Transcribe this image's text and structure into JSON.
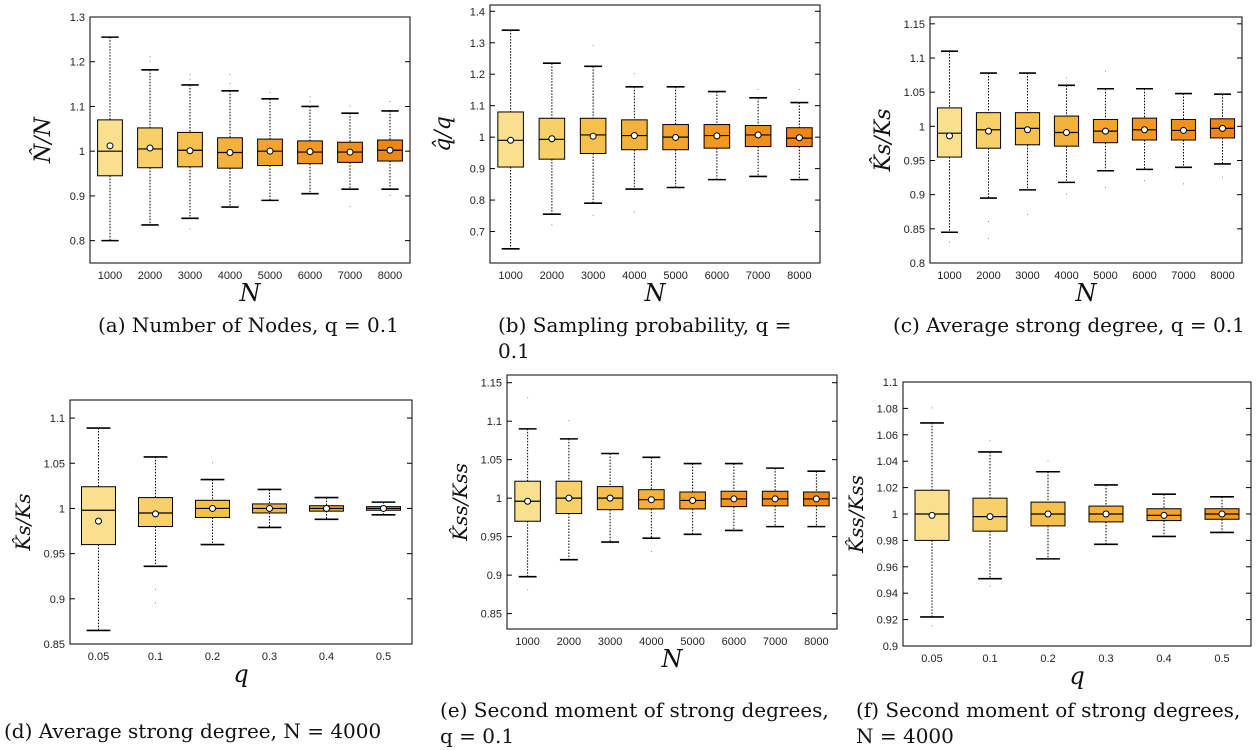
{
  "colors": [
    "#f9e08e",
    "#f8d06a",
    "#f6c04e",
    "#f4b13b",
    "#f3a42d",
    "#f29820",
    "#f08f19",
    "#ef8612"
  ],
  "chart_data": [
    {
      "type": "box",
      "ylabel": "N̂/N",
      "xlabel": "N",
      "categories": [
        "1000",
        "2000",
        "3000",
        "4000",
        "5000",
        "6000",
        "7000",
        "8000"
      ],
      "ylim": [
        0.75,
        1.3
      ],
      "yticks": [
        0.8,
        0.9,
        1,
        1.1,
        1.2,
        1.3
      ],
      "caption": "(a) Number of Nodes, q = 0.1",
      "boxes": [
        {
          "min": 0.8,
          "q1": 0.945,
          "median": 1.0,
          "q3": 1.07,
          "max": 1.255,
          "mean": 1.012,
          "outliers": [
            1.22,
            1.24
          ]
        },
        {
          "min": 0.835,
          "q1": 0.963,
          "median": 1.005,
          "q3": 1.052,
          "max": 1.182,
          "mean": 1.007,
          "outliers": [
            1.2,
            1.21
          ]
        },
        {
          "min": 0.85,
          "q1": 0.965,
          "median": 1.002,
          "q3": 1.042,
          "max": 1.148,
          "mean": 1.001,
          "outliers": [
            0.825,
            1.16,
            1.17
          ]
        },
        {
          "min": 0.875,
          "q1": 0.962,
          "median": 0.997,
          "q3": 1.03,
          "max": 1.135,
          "mean": 0.997,
          "outliers": [
            1.15,
            1.17
          ]
        },
        {
          "min": 0.89,
          "q1": 0.968,
          "median": 1.0,
          "q3": 1.027,
          "max": 1.117,
          "mean": 1.0,
          "outliers": [
            1.13
          ]
        },
        {
          "min": 0.905,
          "q1": 0.972,
          "median": 0.998,
          "q3": 1.023,
          "max": 1.1,
          "mean": 0.999,
          "outliers": [
            1.12,
            1.11
          ]
        },
        {
          "min": 0.915,
          "q1": 0.975,
          "median": 0.998,
          "q3": 1.02,
          "max": 1.085,
          "mean": 0.998,
          "outliers": [
            0.875,
            1.1
          ]
        },
        {
          "min": 0.915,
          "q1": 0.978,
          "median": 1.002,
          "q3": 1.025,
          "max": 1.09,
          "mean": 1.002,
          "outliers": [
            0.9,
            1.11
          ]
        }
      ]
    },
    {
      "type": "box",
      "ylabel": "q̂/q",
      "xlabel": "N",
      "categories": [
        "1000",
        "2000",
        "3000",
        "4000",
        "5000",
        "6000",
        "7000",
        "8000"
      ],
      "ylim": [
        0.6,
        1.42
      ],
      "yticks": [
        0.7,
        0.8,
        0.9,
        1,
        1.1,
        1.2,
        1.3,
        1.4
      ],
      "caption": "(b) Sampling probability, q = 0.1",
      "boxes": [
        {
          "min": 0.645,
          "q1": 0.905,
          "median": 0.99,
          "q3": 1.08,
          "max": 1.34,
          "mean": 0.99,
          "outliers": []
        },
        {
          "min": 0.755,
          "q1": 0.93,
          "median": 0.993,
          "q3": 1.06,
          "max": 1.235,
          "mean": 0.995,
          "outliers": [
            0.72
          ]
        },
        {
          "min": 0.79,
          "q1": 0.948,
          "median": 1.007,
          "q3": 1.06,
          "max": 1.225,
          "mean": 1.003,
          "outliers": [
            1.29,
            0.75
          ]
        },
        {
          "min": 0.835,
          "q1": 0.96,
          "median": 1.005,
          "q3": 1.055,
          "max": 1.16,
          "mean": 1.005,
          "outliers": [
            1.2,
            0.76
          ]
        },
        {
          "min": 0.84,
          "q1": 0.96,
          "median": 1.0,
          "q3": 1.04,
          "max": 1.16,
          "mean": 0.999,
          "outliers": []
        },
        {
          "min": 0.865,
          "q1": 0.965,
          "median": 1.005,
          "q3": 1.04,
          "max": 1.145,
          "mean": 1.004,
          "outliers": []
        },
        {
          "min": 0.875,
          "q1": 0.97,
          "median": 1.007,
          "q3": 1.037,
          "max": 1.125,
          "mean": 1.007,
          "outliers": [
            1.15
          ]
        },
        {
          "min": 0.865,
          "q1": 0.97,
          "median": 0.997,
          "q3": 1.03,
          "max": 1.11,
          "mean": 0.998,
          "outliers": [
            1.15
          ]
        }
      ]
    },
    {
      "type": "box",
      "ylabel": "K̂s/Ks",
      "xlabel": "N",
      "categories": [
        "1000",
        "2000",
        "3000",
        "4000",
        "5000",
        "6000",
        "7000",
        "8000"
      ],
      "ylim": [
        0.8,
        1.16
      ],
      "yticks": [
        0.8,
        0.85,
        0.9,
        0.95,
        1,
        1.05,
        1.1,
        1.15
      ],
      "caption": "(c) Average strong degree, q = 0.1",
      "boxes": [
        {
          "min": 0.845,
          "q1": 0.955,
          "median": 0.99,
          "q3": 1.027,
          "max": 1.11,
          "mean": 0.986,
          "outliers": [
            0.83
          ]
        },
        {
          "min": 0.895,
          "q1": 0.968,
          "median": 0.995,
          "q3": 1.02,
          "max": 1.078,
          "mean": 0.993,
          "outliers": [
            0.835,
            0.86
          ]
        },
        {
          "min": 0.907,
          "q1": 0.973,
          "median": 0.997,
          "q3": 1.02,
          "max": 1.078,
          "mean": 0.995,
          "outliers": [
            0.87
          ]
        },
        {
          "min": 0.918,
          "q1": 0.971,
          "median": 0.991,
          "q3": 1.015,
          "max": 1.06,
          "mean": 0.991,
          "outliers": [
            0.9,
            1.07
          ]
        },
        {
          "min": 0.935,
          "q1": 0.976,
          "median": 0.993,
          "q3": 1.01,
          "max": 1.055,
          "mean": 0.993,
          "outliers": [
            0.91,
            1.08
          ]
        },
        {
          "min": 0.937,
          "q1": 0.98,
          "median": 0.995,
          "q3": 1.012,
          "max": 1.055,
          "mean": 0.995,
          "outliers": [
            0.92
          ]
        },
        {
          "min": 0.94,
          "q1": 0.98,
          "median": 0.994,
          "q3": 1.01,
          "max": 1.048,
          "mean": 0.994,
          "outliers": [
            0.915
          ]
        },
        {
          "min": 0.945,
          "q1": 0.983,
          "median": 0.997,
          "q3": 1.011,
          "max": 1.047,
          "mean": 0.997,
          "outliers": [
            0.925
          ]
        }
      ]
    },
    {
      "type": "box",
      "ylabel": "K̂s/Ks",
      "xlabel": "q",
      "categories": [
        "0.05",
        "0.1",
        "0.2",
        "0.3",
        "0.4",
        "0.5"
      ],
      "ylim": [
        0.85,
        1.12
      ],
      "yticks": [
        0.85,
        0.9,
        0.95,
        1,
        1.05,
        1.1
      ],
      "caption": "(d) Average strong degree, N = 4000",
      "boxes": [
        {
          "min": 0.865,
          "q1": 0.96,
          "median": 0.998,
          "q3": 1.024,
          "max": 1.089,
          "mean": 0.986,
          "outliers": []
        },
        {
          "min": 0.936,
          "q1": 0.98,
          "median": 0.995,
          "q3": 1.012,
          "max": 1.057,
          "mean": 0.994,
          "outliers": [
            0.895,
            0.91
          ]
        },
        {
          "min": 0.96,
          "q1": 0.99,
          "median": 1.0,
          "q3": 1.009,
          "max": 1.032,
          "mean": 1.0,
          "outliers": [
            1.05
          ]
        },
        {
          "min": 0.979,
          "q1": 0.995,
          "median": 1.0,
          "q3": 1.005,
          "max": 1.021,
          "mean": 1.0,
          "outliers": []
        },
        {
          "min": 0.988,
          "q1": 0.997,
          "median": 1.0,
          "q3": 1.003,
          "max": 1.012,
          "mean": 1.0,
          "outliers": []
        },
        {
          "min": 0.993,
          "q1": 0.998,
          "median": 1.0,
          "q3": 1.002,
          "max": 1.007,
          "mean": 1.0,
          "outliers": []
        }
      ]
    },
    {
      "type": "box",
      "ylabel": "K̂ss/Kss",
      "xlabel": "N",
      "categories": [
        "1000",
        "2000",
        "3000",
        "4000",
        "5000",
        "6000",
        "7000",
        "8000"
      ],
      "ylim": [
        0.83,
        1.16
      ],
      "yticks": [
        0.85,
        0.9,
        0.95,
        1,
        1.05,
        1.1,
        1.15
      ],
      "caption": "(e) Second moment of strong degrees, q = 0.1",
      "boxes": [
        {
          "min": 0.898,
          "q1": 0.97,
          "median": 0.996,
          "q3": 1.022,
          "max": 1.09,
          "mean": 0.996,
          "outliers": [
            1.13,
            0.88
          ]
        },
        {
          "min": 0.92,
          "q1": 0.98,
          "median": 1.0,
          "q3": 1.022,
          "max": 1.077,
          "mean": 1.0,
          "outliers": [
            1.1
          ]
        },
        {
          "min": 0.943,
          "q1": 0.985,
          "median": 1.0,
          "q3": 1.015,
          "max": 1.058,
          "mean": 1.0,
          "outliers": []
        },
        {
          "min": 0.948,
          "q1": 0.986,
          "median": 0.998,
          "q3": 1.011,
          "max": 1.053,
          "mean": 0.998,
          "outliers": [
            0.93
          ]
        },
        {
          "min": 0.953,
          "q1": 0.986,
          "median": 0.997,
          "q3": 1.008,
          "max": 1.045,
          "mean": 0.997,
          "outliers": []
        },
        {
          "min": 0.958,
          "q1": 0.989,
          "median": 0.999,
          "q3": 1.009,
          "max": 1.045,
          "mean": 0.999,
          "outliers": []
        },
        {
          "min": 0.963,
          "q1": 0.99,
          "median": 0.999,
          "q3": 1.009,
          "max": 1.039,
          "mean": 0.999,
          "outliers": []
        },
        {
          "min": 0.963,
          "q1": 0.99,
          "median": 0.999,
          "q3": 1.008,
          "max": 1.035,
          "mean": 0.999,
          "outliers": []
        }
      ]
    },
    {
      "type": "box",
      "ylabel": "K̂ss/Kss",
      "xlabel": "q",
      "categories": [
        "0.05",
        "0.1",
        "0.2",
        "0.3",
        "0.4",
        "0.5"
      ],
      "ylim": [
        0.9,
        1.1
      ],
      "yticks": [
        0.9,
        0.92,
        0.94,
        0.96,
        0.98,
        1,
        1.02,
        1.04,
        1.06,
        1.08,
        1.1
      ],
      "caption": "(f) Second moment of strong degrees, N = 4000",
      "boxes": [
        {
          "min": 0.922,
          "q1": 0.98,
          "median": 1.0,
          "q3": 1.018,
          "max": 1.069,
          "mean": 0.999,
          "outliers": [
            1.08,
            0.915
          ]
        },
        {
          "min": 0.951,
          "q1": 0.987,
          "median": 0.998,
          "q3": 1.012,
          "max": 1.047,
          "mean": 0.998,
          "outliers": [
            1.055,
            0.945
          ]
        },
        {
          "min": 0.966,
          "q1": 0.991,
          "median": 1.0,
          "q3": 1.009,
          "max": 1.032,
          "mean": 1.0,
          "outliers": [
            1.04
          ]
        },
        {
          "min": 0.977,
          "q1": 0.994,
          "median": 1.0,
          "q3": 1.006,
          "max": 1.022,
          "mean": 1.0,
          "outliers": []
        },
        {
          "min": 0.983,
          "q1": 0.995,
          "median": 0.999,
          "q3": 1.004,
          "max": 1.015,
          "mean": 0.999,
          "outliers": []
        },
        {
          "min": 0.986,
          "q1": 0.996,
          "median": 1.0,
          "q3": 1.004,
          "max": 1.013,
          "mean": 1.0,
          "outliers": []
        }
      ]
    }
  ]
}
